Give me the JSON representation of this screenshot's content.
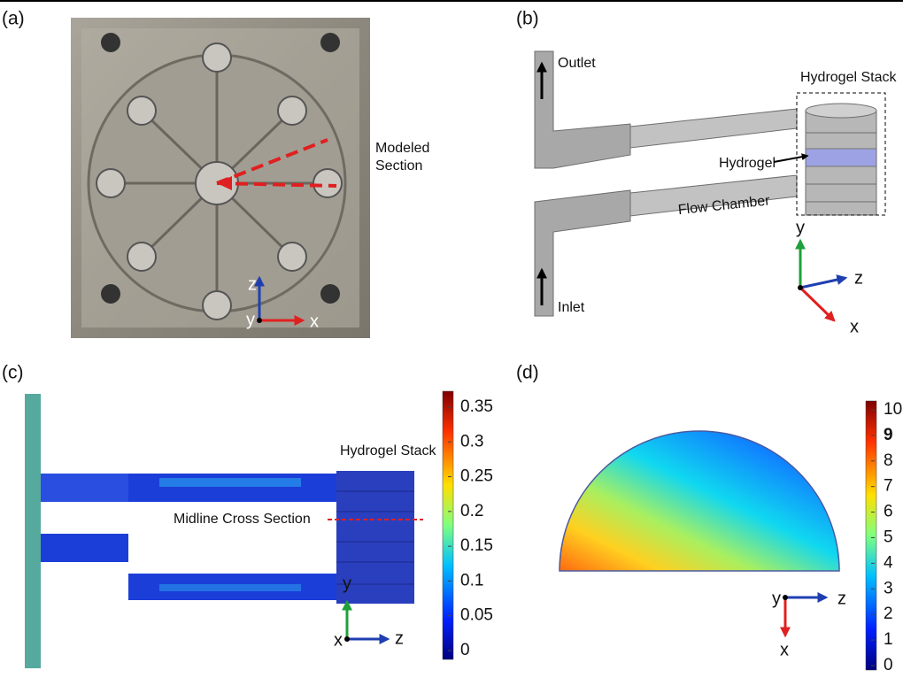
{
  "panels": {
    "a": {
      "label": "(a)",
      "annotation": [
        "Modeled",
        "Section"
      ],
      "axes": [
        "z",
        "y",
        "x"
      ]
    },
    "b": {
      "label": "(b)",
      "outlet": "Outlet",
      "inlet": "Inlet",
      "stack": "Hydrogel Stack",
      "hydrogel": "Hydrogel",
      "chamber": "Flow Chamber",
      "axes": [
        "y",
        "z",
        "x"
      ]
    },
    "c": {
      "label": "(c)",
      "stack": "Hydrogel Stack",
      "midline": "Midline Cross Section",
      "colorbar": [
        "0.35",
        "0.3",
        "0.25",
        "0.2",
        "0.15",
        "0.1",
        "0.05",
        "0"
      ],
      "axes": [
        "y",
        "x",
        "z"
      ]
    },
    "d": {
      "label": "(d)",
      "colorbar": [
        "10",
        "9",
        "8",
        "7",
        "6",
        "5",
        "4",
        "3",
        "2",
        "1",
        "0"
      ],
      "axes": [
        "y",
        "z",
        "x"
      ]
    }
  }
}
